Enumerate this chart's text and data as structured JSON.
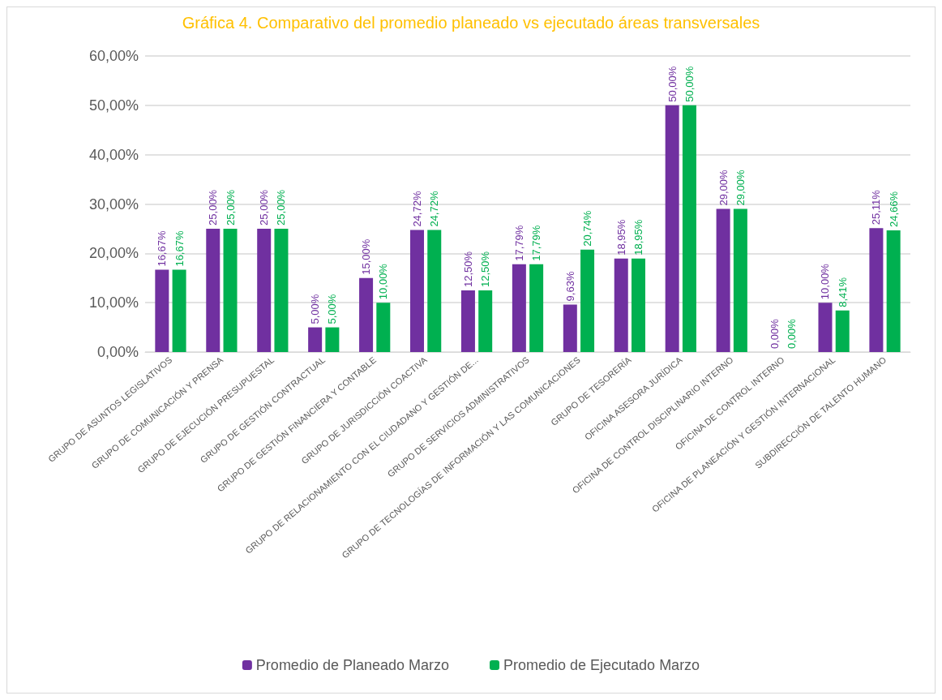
{
  "chart_data": {
    "type": "bar",
    "title": "Gráfica 4. Comparativo del promedio planeado vs ejecutado áreas transversales",
    "categories": [
      "GRUPO DE ASUNTOS LEGISLATIVOS",
      "GRUPO DE COMUNICACIÓN Y PRENSA",
      "GRUPO DE EJECUCIÓN PRESUPUESTAL",
      "GRUPO DE GESTIÓN CONTRACTUAL",
      "GRUPO DE GESTIÓN FINANCIERA Y CONTABLE",
      "GRUPO DE JURISDICCIÓN COACTIVA",
      "GRUPO DE RELACIONAMIENTO CON EL CIUDADANO Y GESTIÓN DE...",
      "GRUPO DE SERVICIOS ADMINISTRATIVOS",
      "GRUPO DE TECNOLOGÍAS DE INFORMACIÓN Y LAS COMUNICACIONES",
      "GRUPO DE TESORERÍA",
      "OFICINA ASESORA JURÍDICA",
      "OFICINA DE CONTROL DISCIPLINARIO INTERNO",
      "OFICINA DE CONTROL INTERNO",
      "OFICINA DE PLANEACIÓN Y GESTIÓN INTERNACIONAL",
      "SUBDIRECCIÓN DE TALENTO HUMANO"
    ],
    "series": [
      {
        "name": "Promedio de Planeado Marzo",
        "color": "#7030a0",
        "values": [
          16.67,
          25,
          25,
          5,
          15,
          24.72,
          12.5,
          17.79,
          9.63,
          18.95,
          50,
          29,
          0,
          10,
          25.11
        ],
        "value_labels": [
          "16,67%",
          "25,00%",
          "25,00%",
          "5,00%",
          "15,00%",
          "24,72%",
          "12,50%",
          "17,79%",
          "9,63%",
          "18,95%",
          "50,00%",
          "29,00%",
          "0,00%",
          "10,00%",
          "25,11%"
        ]
      },
      {
        "name": "Promedio de Ejecutado Marzo",
        "color": "#00b050",
        "values": [
          16.67,
          25,
          25,
          5,
          10,
          24.72,
          12.5,
          17.79,
          20.74,
          18.95,
          50,
          29,
          0,
          8.41,
          24.66
        ],
        "value_labels": [
          "16,67%",
          "25,00%",
          "25,00%",
          "5,00%",
          "10,00%",
          "24,72%",
          "12,50%",
          "17,79%",
          "20,74%",
          "18,95%",
          "50,00%",
          "29,00%",
          "0,00%",
          "8,41%",
          "24,66%"
        ]
      }
    ],
    "ylim": [
      0,
      60
    ],
    "yticks": [
      {
        "value": 0,
        "label": "0,00%"
      },
      {
        "value": 10,
        "label": "10,00%"
      },
      {
        "value": 20,
        "label": "20,00%"
      },
      {
        "value": 30,
        "label": "30,00%"
      },
      {
        "value": 40,
        "label": "40,00%"
      },
      {
        "value": 50,
        "label": "50,00%"
      },
      {
        "value": 60,
        "label": "60,00%"
      }
    ],
    "grid": "y",
    "legend": "bottom"
  }
}
